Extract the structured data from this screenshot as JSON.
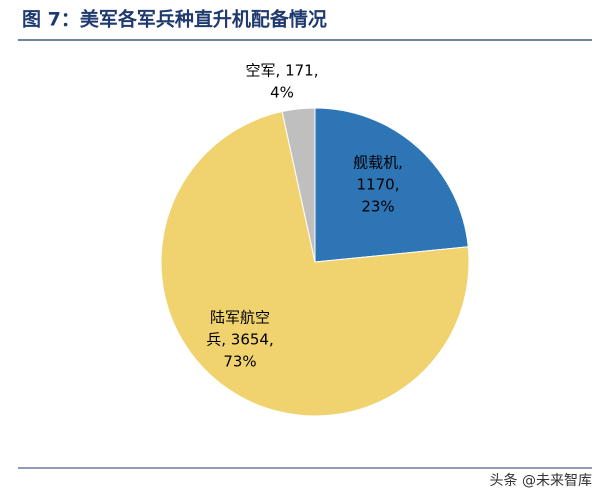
{
  "chart_data": {
    "type": "pie",
    "title": "图 7：美军各军兵种直升机配备情况",
    "values": [
      1170,
      3654,
      171
    ],
    "colors": [
      "#2e75b6",
      "#f0d36f",
      "#bfbfbf"
    ],
    "data_labels": [
      [
        "舰载机,",
        "1170,",
        "23%"
      ],
      [
        "陆军航空",
        "兵, 3654,",
        "73%"
      ],
      [
        "空军, 171,",
        "4%"
      ]
    ],
    "watermark": "头条 @未来智库"
  }
}
